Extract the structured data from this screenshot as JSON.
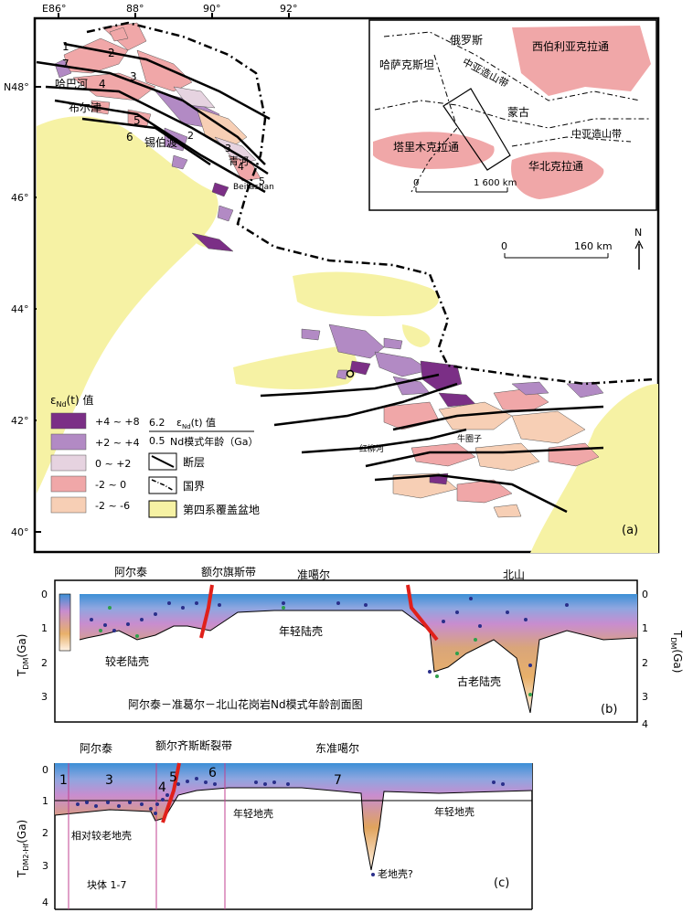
{
  "map": {
    "top_ticks": [
      "E86°",
      "88°",
      "90°",
      "92°"
    ],
    "left_ticks": [
      "N48°",
      "46°",
      "44°",
      "42°",
      "40°"
    ],
    "place_labels": {
      "hbhe": "哈巴河",
      "buerjin": "布尔津",
      "xibodu": "锡伯渡",
      "qinghe": "青河",
      "hongliuhe": "红柳河",
      "niujuanzi": "牛圈子",
      "beitashan": "Beitashan"
    },
    "fault_numbers": [
      "1",
      "2",
      "3",
      "4",
      "5",
      "6",
      "7"
    ],
    "fault_numbers_lower": [
      "2",
      "3",
      "4",
      "5"
    ],
    "scale": {
      "zero": "0",
      "dist": "160 km"
    },
    "north": "N",
    "panel_label": "(a)"
  },
  "inset": {
    "labels": {
      "russia": "俄罗斯",
      "kazakhstan": "哈萨克斯坦",
      "mongolia": "蒙古",
      "siberia": "西伯利亚克拉通",
      "tarim": "塔里木克拉通",
      "northchina": "华北克拉通",
      "caob1": "中亚造山带",
      "caob2": "中亚造山带"
    },
    "scale": {
      "zero": "0",
      "dist": "1 600 km"
    }
  },
  "legend": {
    "title": "ε",
    "title_sub": "Nd",
    "title_rest": "(t) 值",
    "items": [
      {
        "label": "+4 ~ +8",
        "color": "#7b2f86"
      },
      {
        "label": "+2 ~ +4",
        "color": "#b28ac4"
      },
      {
        "label": "0 ~ +2",
        "color": "#e6d3e0"
      },
      {
        "label": "-2 ~ 0",
        "color": "#f0a7a8"
      },
      {
        "label": "-2 ~ -6",
        "color": "#f7cfb5"
      }
    ],
    "sample_top": "6.2",
    "sample_bot": "0.5",
    "sample_top_label": "ε",
    "sample_top_sub": "Nd",
    "sample_top_rest": "(t) 值",
    "sample_bot_label": "Nd模式年龄（Ga）",
    "fault": "断层",
    "border": "国界",
    "basin": "第四系覆盖盆地",
    "basin_color": "#f6f2a4"
  },
  "panel_b": {
    "regions": [
      "阿尔泰",
      "额尔旗斯带",
      "准噶尔",
      "北山"
    ],
    "labels": {
      "older": "较老陆壳",
      "young": "年轻陆壳",
      "ancient": "古老陆壳",
      "caption": "阿尔泰－准葛尔－北山花岗岩Nd模式年龄剖面图",
      "panel": "(b)"
    },
    "y_ticks": [
      "0",
      "1",
      "2",
      "3",
      "4"
    ],
    "y_label": "T",
    "y_label_sub": "DM",
    "y_label_rest": "(Ga)"
  },
  "panel_c": {
    "regions": [
      "阿尔泰",
      "额尔齐斯断裂带",
      "东准噶尔"
    ],
    "labels": {
      "older": "相对较老地壳",
      "young1": "年轻地壳",
      "young2": "年轻地壳",
      "old": "老地壳?",
      "blocks": "块体 1-7",
      "panel": "(c)"
    },
    "block_numbers": [
      "1",
      "3",
      "4",
      "5",
      "6",
      "7"
    ],
    "y_ticks": [
      "0",
      "1",
      "2",
      "3",
      "4"
    ],
    "y_label": "T",
    "y_label_sub": "DM2-Hf",
    "y_label_rest": "(Ga)"
  }
}
